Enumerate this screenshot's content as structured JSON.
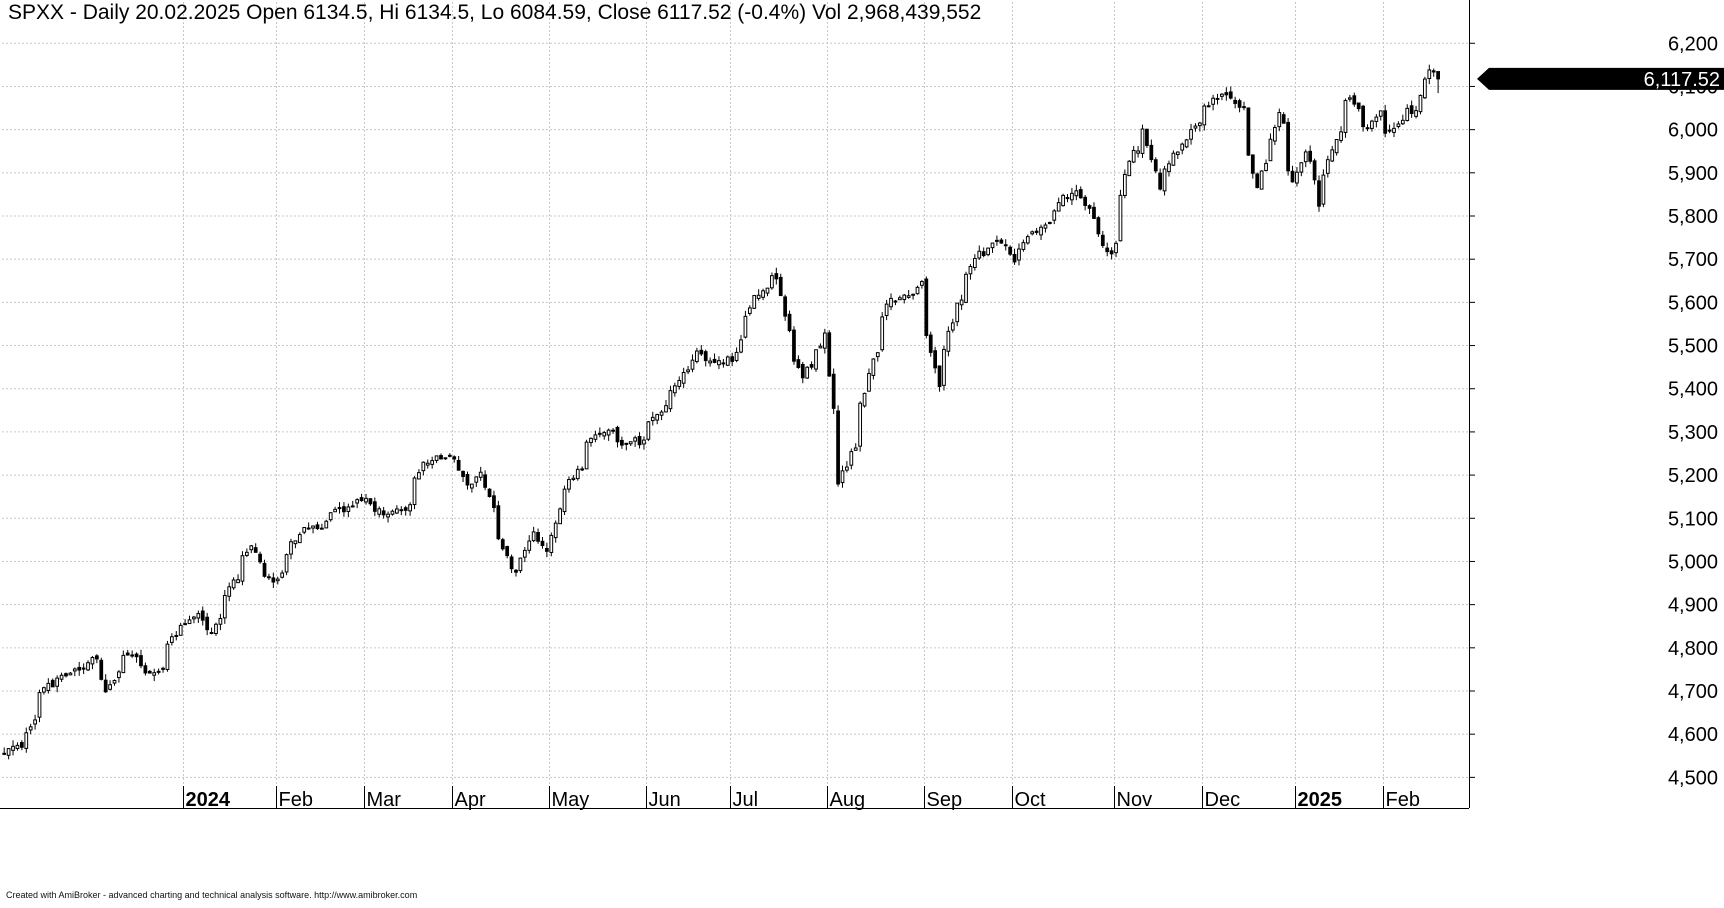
{
  "header": {
    "title": "SPXX - Daily 20.02.2025 Open 6134.5, Hi 6134.5, Lo 6084.59, Close 6117.52 (-0.4%) Vol 2,968,439,552"
  },
  "footer": {
    "credit": "Created with AmiBroker - advanced charting and technical analysis software. http://www.amibroker.com"
  },
  "colors": {
    "background": "#ffffff",
    "grid": "#c8c8c8",
    "candle": "#000000",
    "last_price_tag": "#000000",
    "last_price_text": "#ffffff"
  },
  "chart_data": {
    "type": "candlestick",
    "symbol": "SPXX",
    "last_price_label": "6,117.52",
    "last_close": 6117.52,
    "ylim": [
      4480,
      6240
    ],
    "yticks": [
      4500,
      4600,
      4700,
      4800,
      4900,
      5000,
      5100,
      5200,
      5300,
      5400,
      5500,
      5600,
      5700,
      5800,
      5900,
      6000,
      6100,
      6200
    ],
    "ytick_labels": [
      "4,500",
      "4,600",
      "4,700",
      "4,800",
      "4,900",
      "5,000",
      "5,100",
      "5,200",
      "5,300",
      "5,400",
      "5,500",
      "5,600",
      "5,700",
      "5,800",
      "5,900",
      "6,000",
      "6,100",
      "6,200"
    ],
    "grid": true,
    "x_axis_labels": [
      {
        "label": "2024",
        "bold": true,
        "date": "2024-01-02"
      },
      {
        "label": "Feb",
        "bold": false,
        "date": "2024-02-01"
      },
      {
        "label": "Mar",
        "bold": false,
        "date": "2024-03-01"
      },
      {
        "label": "Apr",
        "bold": false,
        "date": "2024-04-01"
      },
      {
        "label": "May",
        "bold": false,
        "date": "2024-05-01"
      },
      {
        "label": "Jun",
        "bold": false,
        "date": "2024-06-03"
      },
      {
        "label": "Jul",
        "bold": false,
        "date": "2024-07-01"
      },
      {
        "label": "Aug",
        "bold": false,
        "date": "2024-08-01"
      },
      {
        "label": "Sep",
        "bold": false,
        "date": "2024-09-03"
      },
      {
        "label": "Oct",
        "bold": false,
        "date": "2024-10-01"
      },
      {
        "label": "Nov",
        "bold": false,
        "date": "2024-11-01"
      },
      {
        "label": "Dec",
        "bold": false,
        "date": "2024-12-02"
      },
      {
        "label": "2025",
        "bold": true,
        "date": "2025-01-02"
      },
      {
        "label": "Feb",
        "bold": false,
        "date": "2025-02-03"
      }
    ],
    "x_range": [
      "2023-11-01",
      "2025-02-28"
    ],
    "close_anchors": [
      {
        "date": "2023-11-01",
        "close": 4560
      },
      {
        "date": "2023-11-07",
        "close": 4575
      },
      {
        "date": "2023-11-14",
        "close": 4710
      },
      {
        "date": "2023-11-21",
        "close": 4740
      },
      {
        "date": "2023-11-28",
        "close": 4760
      },
      {
        "date": "2023-12-01",
        "close": 4780
      },
      {
        "date": "2023-12-05",
        "close": 4705
      },
      {
        "date": "2023-12-12",
        "close": 4785
      },
      {
        "date": "2023-12-19",
        "close": 4740
      },
      {
        "date": "2023-12-22",
        "close": 4760
      },
      {
        "date": "2023-12-29",
        "close": 4845
      },
      {
        "date": "2024-01-05",
        "close": 4880
      },
      {
        "date": "2024-01-10",
        "close": 4840
      },
      {
        "date": "2024-01-17",
        "close": 4940
      },
      {
        "date": "2024-01-24",
        "close": 5030
      },
      {
        "date": "2024-01-31",
        "close": 4950
      },
      {
        "date": "2024-02-02",
        "close": 4980
      },
      {
        "date": "2024-02-09",
        "close": 5080
      },
      {
        "date": "2024-02-14",
        "close": 5080
      },
      {
        "date": "2024-02-20",
        "close": 5110
      },
      {
        "date": "2024-02-26",
        "close": 5130
      },
      {
        "date": "2024-03-01",
        "close": 5140
      },
      {
        "date": "2024-03-08",
        "close": 5110
      },
      {
        "date": "2024-03-14",
        "close": 5120
      },
      {
        "date": "2024-03-20",
        "close": 5230
      },
      {
        "date": "2024-03-28",
        "close": 5250
      },
      {
        "date": "2024-04-01",
        "close": 5240
      },
      {
        "date": "2024-04-04",
        "close": 5170
      },
      {
        "date": "2024-04-09",
        "close": 5200
      },
      {
        "date": "2024-04-12",
        "close": 5120
      },
      {
        "date": "2024-04-19",
        "close": 4970
      },
      {
        "date": "2024-04-25",
        "close": 5060
      },
      {
        "date": "2024-04-30",
        "close": 5020
      },
      {
        "date": "2024-05-03",
        "close": 5130
      },
      {
        "date": "2024-05-10",
        "close": 5220
      },
      {
        "date": "2024-05-15",
        "close": 5300
      },
      {
        "date": "2024-05-20",
        "close": 5310
      },
      {
        "date": "2024-05-23",
        "close": 5270
      },
      {
        "date": "2024-05-31",
        "close": 5280
      },
      {
        "date": "2024-06-06",
        "close": 5350
      },
      {
        "date": "2024-06-12",
        "close": 5420
      },
      {
        "date": "2024-06-18",
        "close": 5480
      },
      {
        "date": "2024-06-24",
        "close": 5460
      },
      {
        "date": "2024-07-01",
        "close": 5470
      },
      {
        "date": "2024-07-05",
        "close": 5560
      },
      {
        "date": "2024-07-10",
        "close": 5620
      },
      {
        "date": "2024-07-16",
        "close": 5660
      },
      {
        "date": "2024-07-19",
        "close": 5530
      },
      {
        "date": "2024-07-24",
        "close": 5430
      },
      {
        "date": "2024-07-31",
        "close": 5520
      },
      {
        "date": "2024-08-02",
        "close": 5350
      },
      {
        "date": "2024-08-05",
        "close": 5180
      },
      {
        "date": "2024-08-09",
        "close": 5270
      },
      {
        "date": "2024-08-15",
        "close": 5460
      },
      {
        "date": "2024-08-20",
        "close": 5600
      },
      {
        "date": "2024-08-26",
        "close": 5610
      },
      {
        "date": "2024-08-30",
        "close": 5640
      },
      {
        "date": "2024-09-03",
        "close": 5520
      },
      {
        "date": "2024-09-06",
        "close": 5410
      },
      {
        "date": "2024-09-12",
        "close": 5590
      },
      {
        "date": "2024-09-19",
        "close": 5710
      },
      {
        "date": "2024-09-26",
        "close": 5740
      },
      {
        "date": "2024-10-01",
        "close": 5700
      },
      {
        "date": "2024-10-04",
        "close": 5750
      },
      {
        "date": "2024-10-10",
        "close": 5780
      },
      {
        "date": "2024-10-16",
        "close": 5840
      },
      {
        "date": "2024-10-21",
        "close": 5850
      },
      {
        "date": "2024-10-24",
        "close": 5810
      },
      {
        "date": "2024-10-31",
        "close": 5710
      },
      {
        "date": "2024-11-01",
        "close": 5730
      },
      {
        "date": "2024-11-06",
        "close": 5930
      },
      {
        "date": "2024-11-11",
        "close": 6000
      },
      {
        "date": "2024-11-15",
        "close": 5870
      },
      {
        "date": "2024-11-21",
        "close": 5950
      },
      {
        "date": "2024-11-27",
        "close": 6000
      },
      {
        "date": "2024-12-02",
        "close": 6050
      },
      {
        "date": "2024-12-06",
        "close": 6090
      },
      {
        "date": "2024-12-13",
        "close": 6050
      },
      {
        "date": "2024-12-18",
        "close": 5870
      },
      {
        "date": "2024-12-20",
        "close": 5930
      },
      {
        "date": "2024-12-26",
        "close": 6040
      },
      {
        "date": "2024-12-31",
        "close": 5880
      },
      {
        "date": "2025-01-06",
        "close": 5950
      },
      {
        "date": "2025-01-10",
        "close": 5830
      },
      {
        "date": "2025-01-15",
        "close": 5950
      },
      {
        "date": "2025-01-22",
        "close": 6080
      },
      {
        "date": "2025-01-27",
        "close": 6000
      },
      {
        "date": "2025-01-31",
        "close": 6040
      },
      {
        "date": "2025-02-03",
        "close": 5990
      },
      {
        "date": "2025-02-07",
        "close": 6030
      },
      {
        "date": "2025-02-12",
        "close": 6050
      },
      {
        "date": "2025-02-14",
        "close": 6110
      },
      {
        "date": "2025-02-19",
        "close": 6140
      },
      {
        "date": "2025-02-20",
        "close": 6117.52
      }
    ]
  }
}
